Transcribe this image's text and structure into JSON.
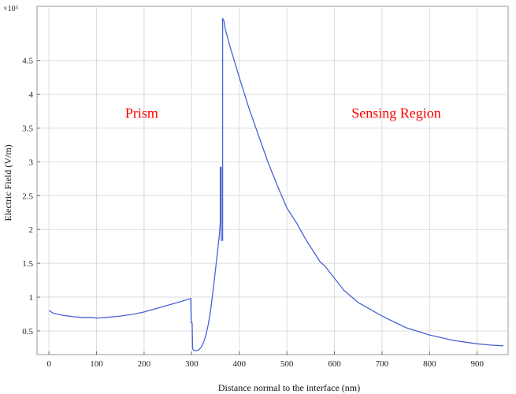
{
  "chart_data": {
    "type": "line",
    "xlabel": "Distance normal to the interface (nm)",
    "ylabel": "Electric Field (V/m)",
    "y_multiplier": "×10⁵",
    "xlim": [
      -25,
      965
    ],
    "ylim": [
      0.15,
      5.3
    ],
    "x_ticks": [
      0,
      100,
      200,
      300,
      400,
      500,
      600,
      700,
      800,
      900
    ],
    "y_ticks": [
      0.5,
      1,
      1.5,
      2,
      2.5,
      3,
      3.5,
      4,
      4.5
    ],
    "grid": true,
    "annotations": [
      {
        "text": "Prism",
        "x": 195,
        "y": 3.65
      },
      {
        "text": "Sensing Region",
        "x": 730,
        "y": 3.65
      }
    ],
    "color": "#4a62d8",
    "series": [
      {
        "x": [
          0,
          10,
          30,
          50,
          70,
          90,
          100,
          120,
          150,
          180,
          200,
          230,
          260,
          280,
          298,
          299,
          300,
          301,
          302,
          303,
          305,
          310,
          315,
          320,
          325,
          330,
          335,
          340,
          345,
          350,
          355,
          358,
          360,
          360,
          362,
          362,
          365,
          365,
          368,
          370,
          380,
          400,
          420,
          440,
          460,
          480,
          500,
          520,
          540,
          560,
          570,
          580,
          600,
          620,
          650,
          700,
          750,
          800,
          850,
          900,
          930,
          955
        ],
        "y": [
          0.8,
          0.76,
          0.73,
          0.71,
          0.7,
          0.7,
          0.69,
          0.7,
          0.72,
          0.75,
          0.78,
          0.84,
          0.9,
          0.94,
          0.98,
          0.62,
          0.62,
          0.62,
          0.25,
          0.22,
          0.21,
          0.21,
          0.22,
          0.26,
          0.33,
          0.44,
          0.6,
          0.82,
          1.1,
          1.4,
          1.72,
          1.9,
          2.1,
          2.92,
          2.92,
          1.84,
          1.84,
          5.12,
          5.08,
          4.98,
          4.72,
          4.25,
          3.8,
          3.4,
          3.0,
          2.65,
          2.32,
          2.1,
          1.85,
          1.63,
          1.52,
          1.46,
          1.28,
          1.1,
          0.92,
          0.72,
          0.55,
          0.44,
          0.36,
          0.31,
          0.29,
          0.28
        ]
      }
    ]
  }
}
